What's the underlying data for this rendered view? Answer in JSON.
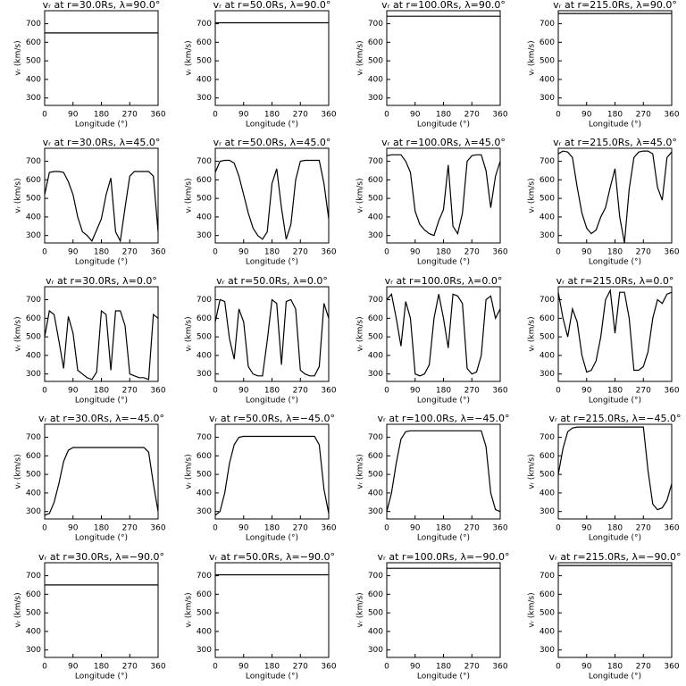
{
  "chart_data": [
    {
      "type": "line",
      "title": "vᵣ at r=30.0Rs, λ=90.0°",
      "xlabel": "Longitude (°)",
      "ylabel": "vᵣ (km/s)",
      "x": [
        0,
        360
      ],
      "values": [
        650,
        650
      ],
      "color": "#000000",
      "xlim": [
        0,
        360
      ],
      "ylim": [
        260,
        770
      ],
      "xticks": [
        0,
        90,
        180,
        270,
        360
      ],
      "yticks": [
        300,
        400,
        500,
        600,
        700
      ]
    },
    {
      "type": "line",
      "title": "vᵣ at r=50.0Rs, λ=90.0°",
      "xlabel": "Longitude (°)",
      "ylabel": "vᵣ (km/s)",
      "x": [
        0,
        360
      ],
      "values": [
        705,
        705
      ],
      "color": "#000000",
      "xlim": [
        0,
        360
      ],
      "ylim": [
        260,
        770
      ],
      "xticks": [
        0,
        90,
        180,
        270,
        360
      ],
      "yticks": [
        300,
        400,
        500,
        600,
        700
      ]
    },
    {
      "type": "line",
      "title": "vᵣ at r=100.0Rs, λ=90.0°",
      "xlabel": "Longitude (°)",
      "ylabel": "vᵣ (km/s)",
      "x": [
        0,
        360
      ],
      "values": [
        740,
        740
      ],
      "color": "#000000",
      "xlim": [
        0,
        360
      ],
      "ylim": [
        260,
        770
      ],
      "xticks": [
        0,
        90,
        180,
        270,
        360
      ],
      "yticks": [
        300,
        400,
        500,
        600,
        700
      ]
    },
    {
      "type": "line",
      "title": "vᵣ at r=215.0Rs, λ=90.0°",
      "xlabel": "Longitude (°)",
      "ylabel": "vᵣ (km/s)",
      "x": [
        0,
        360
      ],
      "values": [
        755,
        755
      ],
      "color": "#000000",
      "xlim": [
        0,
        360
      ],
      "ylim": [
        260,
        770
      ],
      "xticks": [
        0,
        90,
        180,
        270,
        360
      ],
      "yticks": [
        300,
        400,
        500,
        600,
        700
      ]
    },
    {
      "type": "line",
      "title": "vᵣ at r=30.0Rs, λ=45.0°",
      "xlabel": "Longitude (°)",
      "ylabel": "vᵣ (km/s)",
      "x": [
        0,
        15,
        30,
        45,
        60,
        75,
        90,
        105,
        120,
        135,
        150,
        165,
        180,
        195,
        210,
        225,
        240,
        255,
        270,
        285,
        300,
        315,
        330,
        345,
        360
      ],
      "values": [
        520,
        640,
        645,
        645,
        640,
        590,
        520,
        400,
        320,
        300,
        270,
        330,
        390,
        520,
        610,
        320,
        270,
        450,
        620,
        645,
        645,
        645,
        645,
        620,
        320
      ],
      "color": "#000000",
      "xlim": [
        0,
        360
      ],
      "ylim": [
        260,
        770
      ],
      "xticks": [
        0,
        90,
        180,
        270,
        360
      ],
      "yticks": [
        300,
        400,
        500,
        600,
        700
      ]
    },
    {
      "type": "line",
      "title": "vᵣ at r=50.0Rs, λ=45.0°",
      "xlabel": "Longitude (°)",
      "ylabel": "vᵣ (km/s)",
      "x": [
        0,
        15,
        30,
        45,
        60,
        75,
        90,
        105,
        120,
        135,
        150,
        165,
        180,
        195,
        210,
        225,
        240,
        255,
        270,
        285,
        300,
        315,
        330,
        345,
        360
      ],
      "values": [
        640,
        700,
        705,
        705,
        690,
        620,
        520,
        420,
        340,
        300,
        280,
        320,
        580,
        660,
        450,
        280,
        360,
        600,
        700,
        705,
        705,
        705,
        705,
        580,
        390
      ],
      "color": "#000000",
      "xlim": [
        0,
        360
      ],
      "ylim": [
        260,
        770
      ],
      "xticks": [
        0,
        90,
        180,
        270,
        360
      ],
      "yticks": [
        300,
        400,
        500,
        600,
        700
      ]
    },
    {
      "type": "line",
      "title": "vᵣ at r=100.0Rs, λ=45.0°",
      "xlabel": "Longitude (°)",
      "ylabel": "vᵣ (km/s)",
      "x": [
        0,
        15,
        30,
        45,
        60,
        75,
        90,
        105,
        120,
        135,
        150,
        165,
        180,
        195,
        210,
        225,
        240,
        255,
        270,
        285,
        300,
        315,
        330,
        345,
        360
      ],
      "values": [
        730,
        735,
        735,
        735,
        700,
        640,
        430,
        360,
        330,
        310,
        300,
        380,
        440,
        680,
        350,
        310,
        420,
        700,
        730,
        735,
        735,
        650,
        450,
        620,
        700
      ],
      "color": "#000000",
      "xlim": [
        0,
        360
      ],
      "ylim": [
        260,
        770
      ],
      "xticks": [
        0,
        90,
        180,
        270,
        360
      ],
      "yticks": [
        300,
        400,
        500,
        600,
        700
      ]
    },
    {
      "type": "line",
      "title": "vᵣ at r=215.0Rs, λ=45.0°",
      "xlabel": "Longitude (°)",
      "ylabel": "vᵣ (km/s)",
      "x": [
        0,
        15,
        30,
        45,
        60,
        75,
        90,
        105,
        120,
        135,
        150,
        165,
        180,
        195,
        210,
        225,
        240,
        255,
        270,
        285,
        300,
        315,
        330,
        345,
        360
      ],
      "values": [
        740,
        755,
        750,
        720,
        560,
        420,
        340,
        310,
        330,
        400,
        450,
        560,
        660,
        400,
        260,
        550,
        720,
        750,
        755,
        755,
        740,
        560,
        490,
        720,
        750
      ],
      "color": "#000000",
      "xlim": [
        0,
        360
      ],
      "ylim": [
        260,
        770
      ],
      "xticks": [
        0,
        90,
        180,
        270,
        360
      ],
      "yticks": [
        300,
        400,
        500,
        600,
        700
      ]
    },
    {
      "type": "line",
      "title": "vᵣ at r=30.0Rs, λ=0.0°",
      "xlabel": "Longitude (°)",
      "ylabel": "vᵣ (km/s)",
      "x": [
        0,
        15,
        30,
        45,
        60,
        75,
        90,
        105,
        120,
        135,
        150,
        165,
        180,
        195,
        210,
        225,
        240,
        255,
        270,
        285,
        300,
        315,
        330,
        345,
        360
      ],
      "values": [
        500,
        640,
        620,
        480,
        330,
        610,
        520,
        320,
        300,
        280,
        270,
        310,
        640,
        620,
        320,
        640,
        640,
        560,
        300,
        290,
        280,
        280,
        270,
        620,
        600
      ],
      "color": "#000000",
      "xlim": [
        0,
        360
      ],
      "ylim": [
        260,
        770
      ],
      "xticks": [
        0,
        90,
        180,
        270,
        360
      ],
      "yticks": [
        300,
        400,
        500,
        600,
        700
      ]
    },
    {
      "type": "line",
      "title": "vᵣ at r=50.0Rs, λ=0.0°",
      "xlabel": "Longitude (°)",
      "ylabel": "vᵣ (km/s)",
      "x": [
        0,
        15,
        30,
        45,
        60,
        75,
        90,
        105,
        120,
        135,
        150,
        165,
        180,
        195,
        210,
        225,
        240,
        255,
        270,
        285,
        300,
        315,
        330,
        345,
        360
      ],
      "values": [
        580,
        700,
        690,
        490,
        380,
        650,
        580,
        340,
        300,
        290,
        290,
        480,
        700,
        680,
        350,
        690,
        700,
        650,
        320,
        300,
        290,
        290,
        340,
        680,
        600
      ],
      "color": "#000000",
      "xlim": [
        0,
        360
      ],
      "ylim": [
        260,
        770
      ],
      "xticks": [
        0,
        90,
        180,
        270,
        360
      ],
      "yticks": [
        300,
        400,
        500,
        600,
        700
      ]
    },
    {
      "type": "line",
      "title": "vᵣ at r=100.0Rs, λ=0.0°",
      "xlabel": "Longitude (°)",
      "ylabel": "vᵣ (km/s)",
      "x": [
        0,
        15,
        30,
        45,
        60,
        75,
        90,
        105,
        120,
        135,
        150,
        165,
        180,
        195,
        210,
        225,
        240,
        255,
        270,
        285,
        300,
        315,
        330,
        345,
        360
      ],
      "values": [
        700,
        730,
        600,
        450,
        690,
        600,
        300,
        290,
        300,
        350,
        600,
        730,
        600,
        440,
        730,
        720,
        680,
        330,
        300,
        310,
        400,
        700,
        720,
        600,
        650
      ],
      "color": "#000000",
      "xlim": [
        0,
        360
      ],
      "ylim": [
        260,
        770
      ],
      "xticks": [
        0,
        90,
        180,
        270,
        360
      ],
      "yticks": [
        300,
        400,
        500,
        600,
        700
      ]
    },
    {
      "type": "line",
      "title": "vᵣ at r=215.0Rs, λ=0.0°",
      "xlabel": "Longitude (°)",
      "ylabel": "vᵣ (km/s)",
      "x": [
        0,
        15,
        30,
        45,
        60,
        75,
        90,
        105,
        120,
        135,
        150,
        165,
        180,
        195,
        210,
        225,
        240,
        255,
        270,
        285,
        300,
        315,
        330,
        345,
        360
      ],
      "values": [
        740,
        600,
        500,
        650,
        580,
        400,
        310,
        320,
        370,
        500,
        700,
        750,
        520,
        740,
        740,
        600,
        320,
        320,
        340,
        420,
        600,
        700,
        680,
        730,
        740
      ],
      "color": "#000000",
      "xlim": [
        0,
        360
      ],
      "ylim": [
        260,
        770
      ],
      "xticks": [
        0,
        90,
        180,
        270,
        360
      ],
      "yticks": [
        300,
        400,
        500,
        600,
        700
      ]
    },
    {
      "type": "line",
      "title": "vᵣ at r=30.0Rs, λ=−45.0°",
      "xlabel": "Longitude (°)",
      "ylabel": "vᵣ (km/s)",
      "x": [
        0,
        15,
        30,
        45,
        60,
        75,
        90,
        315,
        330,
        345,
        360
      ],
      "values": [
        280,
        290,
        350,
        450,
        570,
        630,
        645,
        645,
        620,
        450,
        300
      ],
      "color": "#000000",
      "xlim": [
        0,
        360
      ],
      "ylim": [
        260,
        770
      ],
      "xticks": [
        0,
        90,
        180,
        270,
        360
      ],
      "yticks": [
        300,
        400,
        500,
        600,
        700
      ]
    },
    {
      "type": "line",
      "title": "vᵣ at r=50.0Rs, λ=−45.0°",
      "xlabel": "Longitude (°)",
      "ylabel": "vᵣ (km/s)",
      "x": [
        0,
        15,
        30,
        45,
        60,
        75,
        90,
        315,
        330,
        345,
        360
      ],
      "values": [
        280,
        300,
        400,
        560,
        660,
        700,
        705,
        705,
        660,
        420,
        290
      ],
      "color": "#000000",
      "xlim": [
        0,
        360
      ],
      "ylim": [
        260,
        770
      ],
      "xticks": [
        0,
        90,
        180,
        270,
        360
      ],
      "yticks": [
        300,
        400,
        500,
        600,
        700
      ]
    },
    {
      "type": "line",
      "title": "vᵣ at r=100.0Rs, λ=−45.0°",
      "xlabel": "Longitude (°)",
      "ylabel": "vᵣ (km/s)",
      "x": [
        0,
        15,
        30,
        45,
        60,
        75,
        300,
        315,
        330,
        345,
        360
      ],
      "values": [
        300,
        400,
        560,
        690,
        730,
        735,
        735,
        650,
        400,
        310,
        300
      ],
      "color": "#000000",
      "xlim": [
        0,
        360
      ],
      "ylim": [
        260,
        770
      ],
      "xticks": [
        0,
        90,
        180,
        270,
        360
      ],
      "yticks": [
        300,
        400,
        500,
        600,
        700
      ]
    },
    {
      "type": "line",
      "title": "vᵣ at r=215.0Rs, λ=−45.0°",
      "xlabel": "Longitude (°)",
      "ylabel": "vᵣ (km/s)",
      "x": [
        0,
        15,
        30,
        45,
        60,
        270,
        285,
        300,
        315,
        330,
        345,
        360
      ],
      "values": [
        500,
        640,
        730,
        750,
        755,
        755,
        520,
        340,
        310,
        320,
        360,
        450
      ],
      "color": "#000000",
      "xlim": [
        0,
        360
      ],
      "ylim": [
        260,
        770
      ],
      "xticks": [
        0,
        90,
        180,
        270,
        360
      ],
      "yticks": [
        300,
        400,
        500,
        600,
        700
      ]
    },
    {
      "type": "line",
      "title": "vᵣ at r=30.0Rs, λ=−90.0°",
      "xlabel": "Longitude (°)",
      "ylabel": "vᵣ (km/s)",
      "x": [
        0,
        360
      ],
      "values": [
        650,
        650
      ],
      "color": "#000000",
      "xlim": [
        0,
        360
      ],
      "ylim": [
        260,
        770
      ],
      "xticks": [
        0,
        90,
        180,
        270,
        360
      ],
      "yticks": [
        300,
        400,
        500,
        600,
        700
      ]
    },
    {
      "type": "line",
      "title": "vᵣ at r=50.0Rs, λ=−90.0°",
      "xlabel": "Longitude (°)",
      "ylabel": "vᵣ (km/s)",
      "x": [
        0,
        360
      ],
      "values": [
        705,
        705
      ],
      "color": "#000000",
      "xlim": [
        0,
        360
      ],
      "ylim": [
        260,
        770
      ],
      "xticks": [
        0,
        90,
        180,
        270,
        360
      ],
      "yticks": [
        300,
        400,
        500,
        600,
        700
      ]
    },
    {
      "type": "line",
      "title": "vᵣ at r=100.0Rs, λ=−90.0°",
      "xlabel": "Longitude (°)",
      "ylabel": "vᵣ (km/s)",
      "x": [
        0,
        360
      ],
      "values": [
        740,
        740
      ],
      "color": "#000000",
      "xlim": [
        0,
        360
      ],
      "ylim": [
        260,
        770
      ],
      "xticks": [
        0,
        90,
        180,
        270,
        360
      ],
      "yticks": [
        300,
        400,
        500,
        600,
        700
      ]
    },
    {
      "type": "line",
      "title": "vᵣ at r=215.0Rs, λ=−90.0°",
      "xlabel": "Longitude (°)",
      "ylabel": "vᵣ (km/s)",
      "x": [
        0,
        360
      ],
      "values": [
        755,
        755
      ],
      "color": "#000000",
      "xlim": [
        0,
        360
      ],
      "ylim": [
        260,
        770
      ],
      "xticks": [
        0,
        90,
        180,
        270,
        360
      ],
      "yticks": [
        300,
        400,
        500,
        600,
        700
      ]
    }
  ]
}
